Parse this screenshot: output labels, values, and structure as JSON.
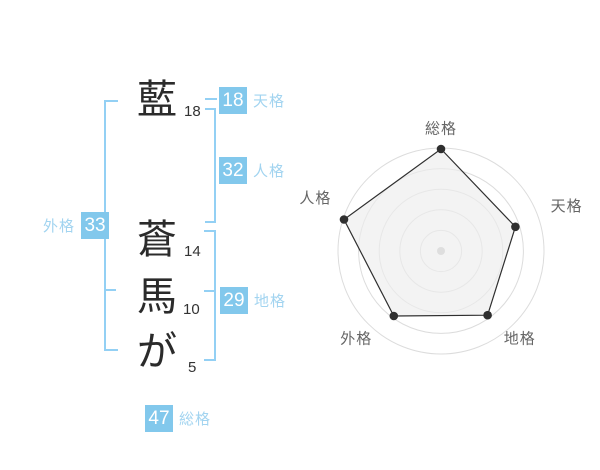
{
  "colors": {
    "accent_blue": "#82c8ec",
    "label_blue": "#a2d4f0",
    "bracket_blue": "#93d0f4",
    "text_dark": "#2b2b2b",
    "grid_gray": "#dcdcdc",
    "radar_label_gray": "#666666"
  },
  "name": {
    "characters": [
      {
        "glyph": "藍",
        "strokes": "18"
      },
      {
        "glyph": "蒼",
        "strokes": "14"
      },
      {
        "glyph": "馬",
        "strokes": "10"
      },
      {
        "glyph": "が",
        "strokes": "5"
      }
    ]
  },
  "kaku": {
    "tenkaku": {
      "value": "18",
      "label": "天格"
    },
    "jinkaku": {
      "value": "32",
      "label": "人格"
    },
    "chikaku": {
      "value": "29",
      "label": "地格"
    },
    "gaikaku": {
      "value": "33",
      "label": "外格"
    },
    "soukaku": {
      "value": "47",
      "label": "総格"
    }
  },
  "chart_data": {
    "type": "radar",
    "axes": [
      "総格",
      "天格",
      "地格",
      "外格",
      "人格"
    ],
    "values": [
      99,
      76,
      77,
      78,
      99
    ],
    "max": 100,
    "rings": 5,
    "grid_shape": "circle",
    "start": "top",
    "direction": "clockwise",
    "fill": "#ededed",
    "stroke": "#2f2f2f",
    "legend": "none"
  }
}
